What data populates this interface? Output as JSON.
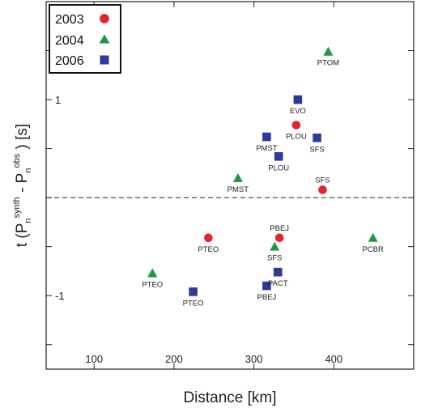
{
  "chart_data": {
    "type": "scatter",
    "xlabel": "Distance [km]",
    "ylabel": {
      "prefix": "t (P",
      "sub1": "n",
      "sup1": "synth",
      "middle": " - P",
      "sub2": "n",
      "sup2": "obs",
      "suffix": " ) [s]"
    },
    "xlim": [
      40,
      500
    ],
    "ylim": [
      -1.75,
      2.0
    ],
    "x_ticks": [
      100,
      200,
      300,
      400
    ],
    "y_ticks": [
      1,
      -1
    ],
    "y_minor_ticks": [
      2,
      1.5,
      1,
      0.5,
      0,
      -0.5,
      -1,
      -1.5
    ],
    "reference_line": {
      "y": 0,
      "style": "dashed"
    },
    "legend": {
      "position": "top-left"
    },
    "series": [
      {
        "name": "2003",
        "marker": "circle",
        "color": "#e8232a",
        "points": [
          {
            "x": 353,
            "y": 0.74,
            "label": "PLOU"
          },
          {
            "x": 386,
            "y": 0.08,
            "label": "SFS"
          },
          {
            "x": 243,
            "y": -0.41,
            "label": "PTEO"
          },
          {
            "x": 332,
            "y": -0.41,
            "label": "PBEJ"
          }
        ]
      },
      {
        "name": "2004",
        "marker": "triangle",
        "color": "#1c9a3e",
        "points": [
          {
            "x": 393,
            "y": 1.49,
            "label": "PTOM"
          },
          {
            "x": 280,
            "y": 0.2,
            "label": "PMST"
          },
          {
            "x": 326,
            "y": -0.5,
            "label": "SFS"
          },
          {
            "x": 449,
            "y": -0.41,
            "label": "PCBR"
          },
          {
            "x": 173,
            "y": -0.77,
            "label": "PTEO"
          }
        ]
      },
      {
        "name": "2006",
        "marker": "square",
        "color": "#2b3b9b",
        "points": [
          {
            "x": 355,
            "y": 1.0,
            "label": "EVO"
          },
          {
            "x": 316,
            "y": 0.62,
            "label": "PMST"
          },
          {
            "x": 379,
            "y": 0.61,
            "label": "SFS"
          },
          {
            "x": 331,
            "y": 0.42,
            "label": "PLOU"
          },
          {
            "x": 330,
            "y": -0.76,
            "label": "PACT"
          },
          {
            "x": 316,
            "y": -0.9,
            "label": "PBEJ"
          },
          {
            "x": 224,
            "y": -0.96,
            "label": "PTEO"
          }
        ]
      }
    ]
  }
}
